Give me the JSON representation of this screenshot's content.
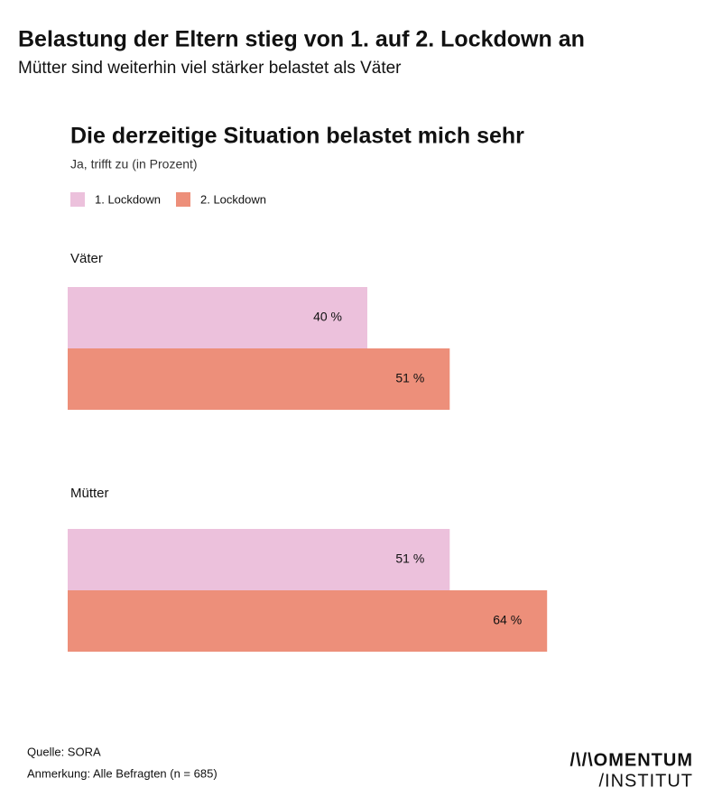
{
  "header": {
    "title": "Belastung der Eltern stieg von 1. auf 2. Lockdown an",
    "subtitle": "Mütter sind weiterhin viel stärker belastet als Väter"
  },
  "chart_data": {
    "type": "bar",
    "orientation": "horizontal",
    "title": "Die derzeitige Situation belastet mich sehr",
    "subtitle": "Ja, trifft zu (in Prozent)",
    "categories": [
      "Väter",
      "Mütter"
    ],
    "series": [
      {
        "name": "1. Lockdown",
        "color": "#ecc1dc",
        "values": [
          40,
          51
        ],
        "value_labels": [
          "40 %",
          "51 %"
        ]
      },
      {
        "name": "2. Lockdown",
        "color": "#ed8f7a",
        "values": [
          51,
          64
        ],
        "value_labels": [
          "51 %",
          "64 %"
        ]
      }
    ]
  },
  "footer": {
    "source": "Quelle: SORA",
    "note": "Anmerkung: Alle Befragten (n = 685)",
    "logo": [
      "/\\/\\OMENTUM",
      "/INSTITUT"
    ]
  }
}
